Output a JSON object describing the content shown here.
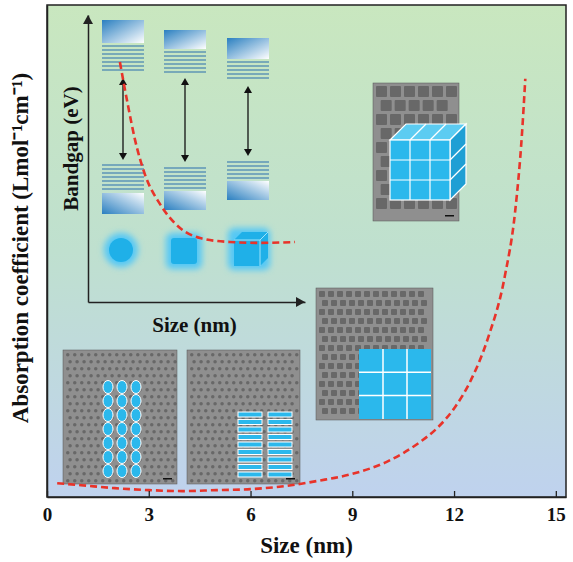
{
  "chart_data": [
    {
      "type": "line",
      "x_label": "Size (nm)",
      "y_label": "Absorption coefficient (Lmol⁻¹cm⁻¹)",
      "x": [
        0.3,
        1,
        2,
        3,
        4,
        5,
        6,
        7,
        8,
        9,
        10,
        11,
        11.5,
        12,
        12.5,
        13,
        13.5,
        13.8,
        14,
        14.1
      ],
      "values": [
        2.8,
        2.4,
        1.8,
        1.4,
        1.2,
        1.4,
        1.6,
        2.2,
        3.3,
        4.7,
        7.1,
        11.2,
        14,
        18,
        23.8,
        32.3,
        45,
        58,
        73.6,
        85
      ],
      "xlim": [
        0,
        15.3
      ],
      "ylim": [
        0,
        100
      ],
      "xticks": [
        0,
        3,
        6,
        9,
        12,
        15
      ],
      "tick_labels": "x",
      "color": "#e8332a",
      "line_style": "dashed",
      "grid": false
    },
    {
      "type": "line",
      "x_label": "Size (nm)",
      "y_label": "Bandgap (eV)",
      "x": [
        1.47,
        1.84,
        2.17,
        2.63,
        3.32,
        4.24,
        5.16,
        6.54,
        7.93,
        9.54
      ],
      "values": [
        8.36,
        6.86,
        5.64,
        4.43,
        3.41,
        2.58,
        2.23,
        2.09,
        2.06,
        2.09
      ],
      "xlim": [
        0,
        10
      ],
      "ylim": [
        0,
        10
      ],
      "tick_labels": false,
      "color": "#e8332a",
      "line_style": "dashed",
      "grid": false
    }
  ]
}
